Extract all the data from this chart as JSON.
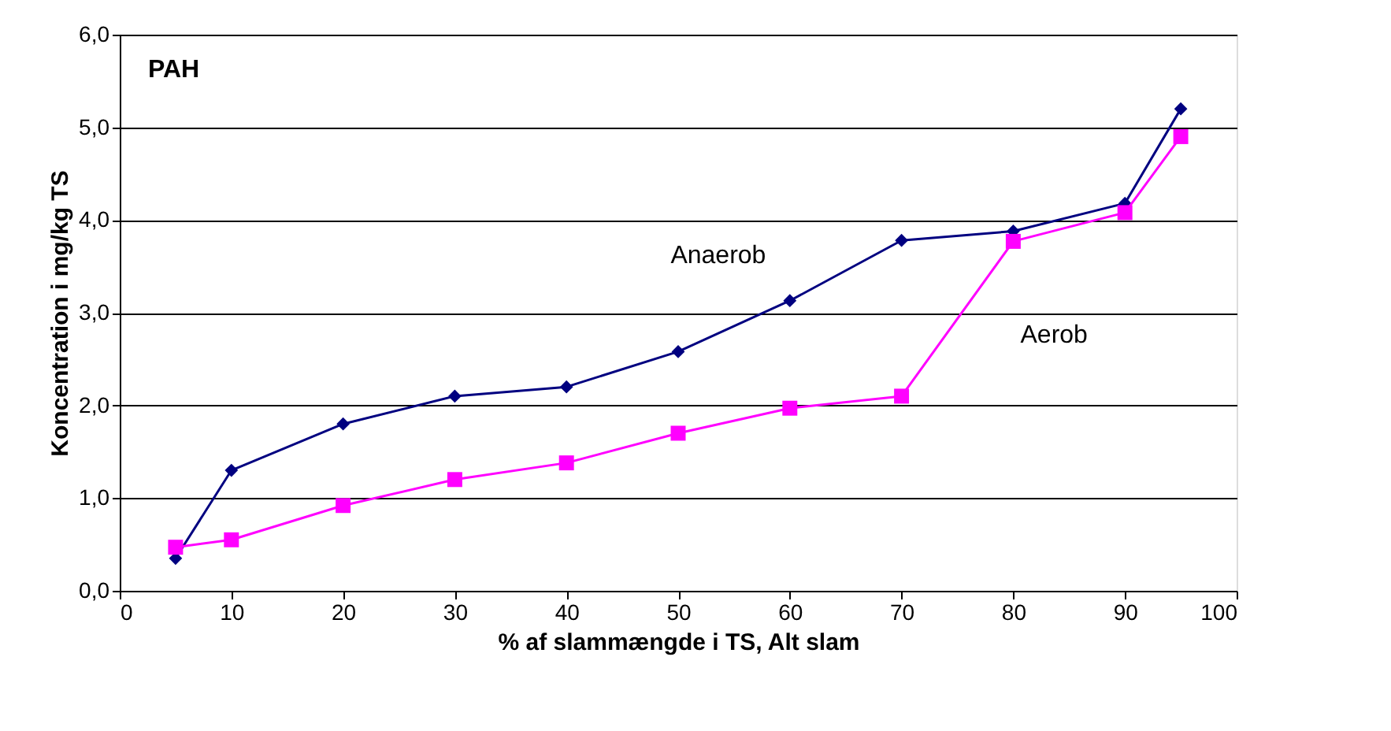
{
  "chart_data": {
    "type": "line",
    "title": "PAH",
    "xlabel": "% af slammængde i TS, Alt slam",
    "ylabel": "Koncentration i mg/kg TS",
    "x": [
      5,
      10,
      20,
      30,
      40,
      50,
      60,
      70,
      80,
      90,
      95
    ],
    "series": [
      {
        "name": "Anaerob",
        "color": "#000080",
        "marker": "diamond",
        "values": [
          0.35,
          1.3,
          1.8,
          2.1,
          2.2,
          2.58,
          3.13,
          3.78,
          3.88,
          4.18,
          5.2
        ]
      },
      {
        "name": "Aerob",
        "color": "#ff00ff",
        "marker": "square",
        "values": [
          0.47,
          0.55,
          0.92,
          1.2,
          1.38,
          1.7,
          1.97,
          2.1,
          3.77,
          4.08,
          4.9
        ]
      }
    ],
    "xlim": [
      0,
      100
    ],
    "xticks": [
      0,
      10,
      20,
      30,
      40,
      50,
      60,
      70,
      80,
      90,
      100
    ],
    "ylim": [
      0,
      6
    ],
    "yticks": [
      {
        "value": 0,
        "label": "0,0"
      },
      {
        "value": 1,
        "label": "1,0"
      },
      {
        "value": 2,
        "label": "2,0"
      },
      {
        "value": 3,
        "label": "3,0"
      },
      {
        "value": 4,
        "label": "4,0"
      },
      {
        "value": 5,
        "label": "5,0"
      },
      {
        "value": 6,
        "label": "6,0"
      }
    ],
    "grid": "y",
    "line_style": "solid"
  }
}
